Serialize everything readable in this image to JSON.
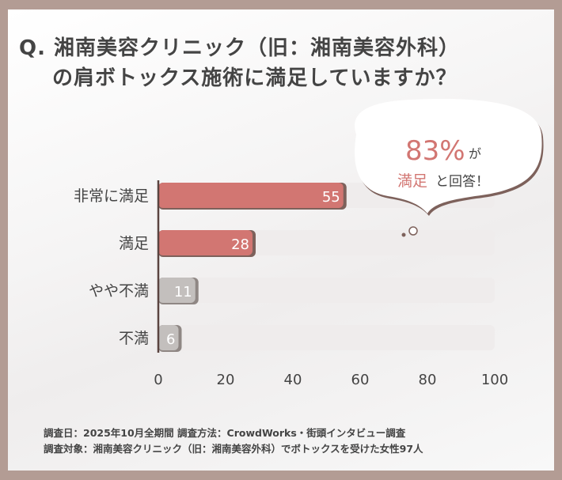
{
  "title_line1": "Q. 湘南美容クリニック（旧：湘南美容外科）",
  "title_line2": "の肩ボトックス施術に満足していますか？",
  "callout": {
    "percent": "83%",
    "ga": "が",
    "manzoku": "満足",
    "rest": "と回答！"
  },
  "footer_line1": "調査日：2025年10月全期間  調査方法：CrowdWorks・街頭インタビュー調査",
  "footer_line2": "調査対象：湘南美容クリニック（旧：湘南美容外科）でボトックスを受けた女性97人",
  "colors": {
    "highlight": "#d27672",
    "muted": "#c3bfbd",
    "track": "#efecec",
    "shadow": "#7d615b",
    "text": "#444444"
  },
  "chart_data": {
    "type": "bar",
    "orientation": "horizontal",
    "categories": [
      "非常に満足",
      "満足",
      "やや不満",
      "不満"
    ],
    "values": [
      55,
      28,
      11,
      6
    ],
    "xlim": [
      0,
      100
    ],
    "xticks": [
      "0",
      "20",
      "40",
      "60",
      "80",
      "100"
    ],
    "grid": false
  }
}
